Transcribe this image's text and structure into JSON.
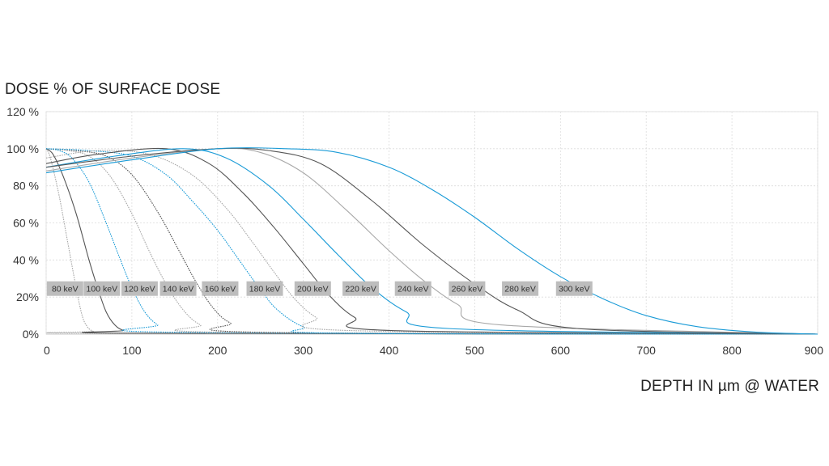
{
  "chart_data": {
    "type": "line",
    "ylabel": "DOSE % OF SURFACE DOSE",
    "xlabel": "DEPTH IN µm @ WATER",
    "xlim": [
      0,
      900
    ],
    "ylim": [
      0,
      120
    ],
    "xticks": [
      0,
      100,
      200,
      300,
      400,
      500,
      600,
      700,
      800,
      900
    ],
    "xtick_labels": [
      "0",
      "100",
      "200",
      "300",
      "400",
      "500",
      "600",
      "700",
      "800",
      "900"
    ],
    "yticks": [
      0,
      20,
      40,
      60,
      80,
      100,
      120
    ],
    "ytick_labels": [
      "0%",
      "20%",
      "40 %",
      "60 %",
      "80 %",
      "100 %",
      "120 %"
    ],
    "grid": true,
    "series": [
      {
        "name": "80 keV",
        "color": "#a8a8a8",
        "dashed": true,
        "label_x": 22,
        "x": [
          0,
          5,
          15,
          25,
          35,
          42,
          48,
          55,
          65,
          900
        ],
        "y": [
          100,
          95,
          75,
          50,
          25,
          10,
          4,
          1.5,
          0.5,
          0
        ]
      },
      {
        "name": "100 keV",
        "color": "#555555",
        "dashed": false,
        "label_x": 65,
        "x": [
          0,
          8,
          20,
          35,
          50,
          60,
          70,
          80,
          90,
          105,
          900
        ],
        "y": [
          100,
          97,
          85,
          65,
          40,
          25,
          12,
          5,
          2,
          0.5,
          0
        ]
      },
      {
        "name": "120 keV",
        "color": "#1a9bd7",
        "dashed": true,
        "label_x": 109,
        "x": [
          0,
          15,
          30,
          50,
          70,
          85,
          100,
          115,
          130,
          150,
          900
        ],
        "y": [
          100,
          99,
          95,
          82,
          60,
          42,
          25,
          12,
          5,
          1,
          0
        ]
      },
      {
        "name": "140 keV",
        "color": "#a8a8a8",
        "dashed": true,
        "label_x": 154,
        "x": [
          0,
          25,
          50,
          75,
          100,
          120,
          140,
          160,
          180,
          210,
          900
        ],
        "y": [
          100,
          99,
          96,
          85,
          65,
          45,
          27,
          13,
          5,
          1,
          0
        ]
      },
      {
        "name": "160 keV",
        "color": "#555555",
        "dashed": true,
        "label_x": 203,
        "x": [
          0,
          35,
          70,
          100,
          130,
          155,
          175,
          195,
          215,
          250,
          900
        ],
        "y": [
          100,
          99,
          96,
          86,
          66,
          45,
          28,
          14,
          6,
          1,
          0
        ]
      },
      {
        "name": "180 keV",
        "color": "#1a9bd7",
        "dashed": true,
        "label_x": 255,
        "x": [
          0,
          50,
          100,
          140,
          170,
          200,
          225,
          250,
          270,
          300,
          340,
          900
        ],
        "y": [
          100,
          99,
          96,
          86,
          72,
          56,
          40,
          24,
          13,
          4,
          0.5,
          0
        ]
      },
      {
        "name": "200 keV",
        "color": "#a8a8a8",
        "dashed": true,
        "label_x": 311,
        "x": [
          0,
          60,
          120,
          170,
          210,
          240,
          265,
          290,
          315,
          350,
          900
        ],
        "y": [
          95,
          99,
          97,
          86,
          68,
          50,
          34,
          19,
          9,
          2,
          0
        ]
      },
      {
        "name": "220 keV",
        "color": "#555555",
        "dashed": false,
        "label_x": 367,
        "x": [
          0,
          60,
          140,
          190,
          230,
          265,
          300,
          330,
          360,
          400,
          900
        ],
        "y": [
          92,
          97,
          100,
          92,
          76,
          58,
          38,
          21,
          9,
          2,
          0
        ]
      },
      {
        "name": "240 keV",
        "color": "#1a9bd7",
        "dashed": false,
        "label_x": 428,
        "x": [
          0,
          80,
          160,
          210,
          260,
          300,
          340,
          380,
          420,
          470,
          900
        ],
        "y": [
          90,
          96,
          100,
          95,
          80,
          62,
          43,
          25,
          12,
          3,
          0
        ]
      },
      {
        "name": "260 keV",
        "color": "#a8a8a8",
        "dashed": false,
        "label_x": 491,
        "x": [
          0,
          100,
          200,
          250,
          300,
          350,
          400,
          440,
          480,
          530,
          900
        ],
        "y": [
          88,
          95,
          100,
          98,
          87,
          67,
          45,
          29,
          16,
          5,
          0
        ]
      },
      {
        "name": "280 keV",
        "color": "#555555",
        "dashed": false,
        "label_x": 553,
        "x": [
          0,
          100,
          200,
          260,
          320,
          380,
          440,
          500,
          550,
          620,
          900
        ],
        "y": [
          90,
          96,
          100,
          99,
          92,
          72,
          48,
          27,
          13,
          3,
          0
        ]
      },
      {
        "name": "300 keV",
        "color": "#1a9bd7",
        "dashed": false,
        "label_x": 616,
        "x": [
          0,
          100,
          200,
          280,
          340,
          400,
          450,
          500,
          550,
          600,
          650,
          700,
          760,
          830,
          900
        ],
        "y": [
          87,
          94,
          100,
          100,
          98,
          90,
          78,
          63,
          46,
          31,
          19,
          10,
          4,
          1,
          0
        ]
      }
    ],
    "label_y": 25
  }
}
